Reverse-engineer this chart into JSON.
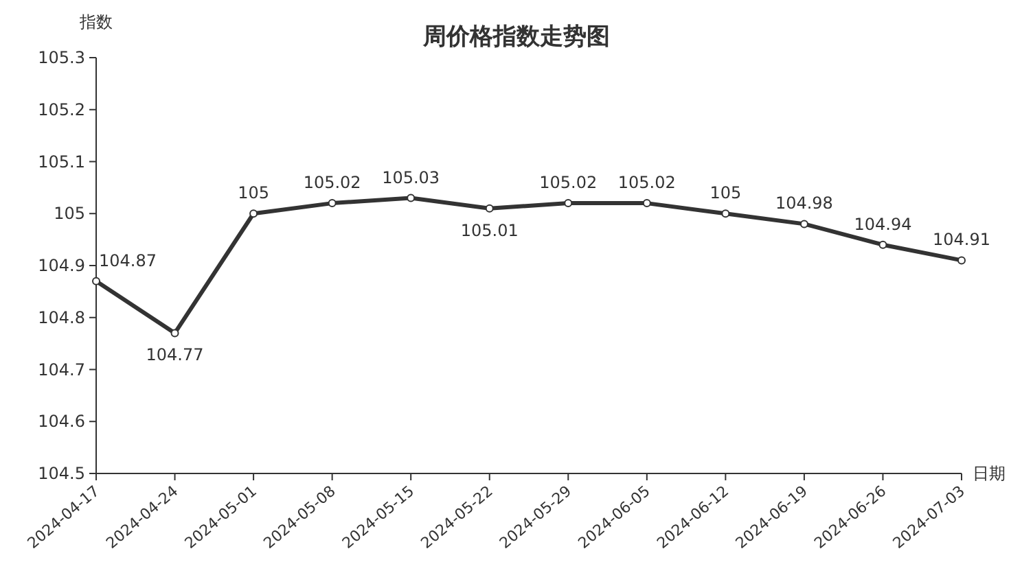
{
  "chart_data": {
    "type": "line",
    "title": "周价格指数走势图",
    "ylabel": "指数",
    "xlabel": "日期",
    "categories": [
      "2024-04-17",
      "2024-04-24",
      "2024-05-01",
      "2024-05-08",
      "2024-05-15",
      "2024-05-22",
      "2024-05-29",
      "2024-06-05",
      "2024-06-12",
      "2024-06-19",
      "2024-06-26",
      "2024-07-03"
    ],
    "values": [
      104.87,
      104.77,
      105,
      105.02,
      105.03,
      105.01,
      105.02,
      105.02,
      105,
      104.98,
      104.94,
      104.91
    ],
    "color": "#333333",
    "marker": "circle",
    "data_labels": true,
    "ylim": [
      104.5,
      105.3
    ],
    "yticks": [
      104.5,
      104.6,
      104.7,
      104.8,
      104.9,
      105,
      105.1,
      105.2,
      105.3
    ]
  }
}
